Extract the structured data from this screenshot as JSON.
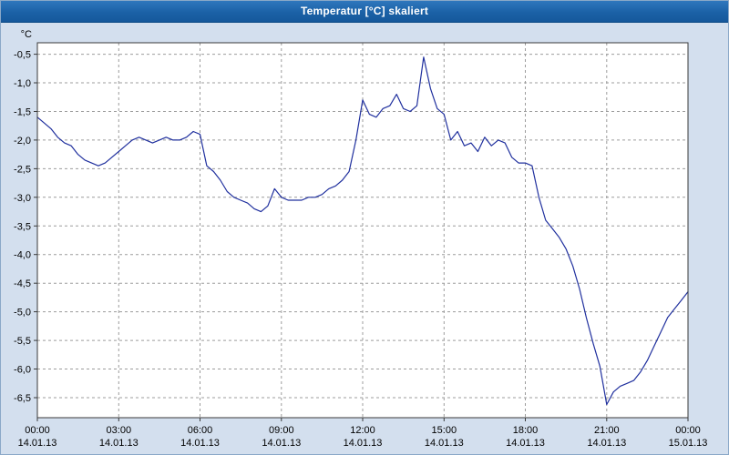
{
  "window": {
    "title": "Temperatur [°C] skaliert"
  },
  "chart_data": {
    "type": "line",
    "title": "Temperatur [°C] skaliert",
    "y_unit_label": "°C",
    "grid": "dashed",
    "legend": "none",
    "xlim_hours": [
      0,
      24
    ],
    "ylim": [
      -6.85,
      -0.3
    ],
    "line_color": "#20309e",
    "grid_color": "#9c9c9c",
    "axis_color": "#3a3a3a",
    "plot_bg": "#ffffff",
    "y_ticks": [
      {
        "v": -0.5,
        "label": "-0,5"
      },
      {
        "v": -1.0,
        "label": "-1,0"
      },
      {
        "v": -1.5,
        "label": "-1,5"
      },
      {
        "v": -2.0,
        "label": "-2,0"
      },
      {
        "v": -2.5,
        "label": "-2,5"
      },
      {
        "v": -3.0,
        "label": "-3,0"
      },
      {
        "v": -3.5,
        "label": "-3,5"
      },
      {
        "v": -4.0,
        "label": "-4,0"
      },
      {
        "v": -4.5,
        "label": "-4,5"
      },
      {
        "v": -5.0,
        "label": "-5,0"
      },
      {
        "v": -5.5,
        "label": "-5,5"
      },
      {
        "v": -6.0,
        "label": "-6,0"
      },
      {
        "v": -6.5,
        "label": "-6,5"
      }
    ],
    "x_ticks": [
      {
        "hour": 0,
        "time": "00:00",
        "date": "14.01.13"
      },
      {
        "hour": 3,
        "time": "03:00",
        "date": "14.01.13"
      },
      {
        "hour": 6,
        "time": "06:00",
        "date": "14.01.13"
      },
      {
        "hour": 9,
        "time": "09:00",
        "date": "14.01.13"
      },
      {
        "hour": 12,
        "time": "12:00",
        "date": "14.01.13"
      },
      {
        "hour": 15,
        "time": "15:00",
        "date": "14.01.13"
      },
      {
        "hour": 18,
        "time": "18:00",
        "date": "14.01.13"
      },
      {
        "hour": 21,
        "time": "21:00",
        "date": "14.01.13"
      },
      {
        "hour": 24,
        "time": "00:00",
        "date": "15.01.13"
      }
    ],
    "series": [
      {
        "name": "Temperatur",
        "x_start_hour": 0,
        "x_step_hours": 0.25,
        "values": [
          -1.6,
          -1.7,
          -1.8,
          -1.95,
          -2.05,
          -2.1,
          -2.25,
          -2.35,
          -2.4,
          -2.45,
          -2.4,
          -2.3,
          -2.2,
          -2.1,
          -2.0,
          -1.95,
          -2.0,
          -2.05,
          -2.0,
          -1.95,
          -2.0,
          -2.0,
          -1.95,
          -1.85,
          -1.9,
          -2.45,
          -2.55,
          -2.7,
          -2.9,
          -3.0,
          -3.05,
          -3.1,
          -3.2,
          -3.25,
          -3.15,
          -2.85,
          -3.0,
          -3.05,
          -3.05,
          -3.05,
          -3.0,
          -3.0,
          -2.95,
          -2.85,
          -2.8,
          -2.7,
          -2.55,
          -2.0,
          -1.3,
          -1.55,
          -1.6,
          -1.45,
          -1.4,
          -1.2,
          -1.45,
          -1.5,
          -1.4,
          -0.55,
          -1.1,
          -1.45,
          -1.55,
          -2.0,
          -1.85,
          -2.1,
          -2.05,
          -2.2,
          -1.95,
          -2.1,
          -2.0,
          -2.05,
          -2.3,
          -2.4,
          -2.4,
          -2.45,
          -3.0,
          -3.4,
          -3.55,
          -3.7,
          -3.9,
          -4.2,
          -4.6,
          -5.1,
          -5.55,
          -5.95,
          -6.62,
          -6.4,
          -6.3,
          -6.25,
          -6.2,
          -6.05,
          -5.85,
          -5.6,
          -5.35,
          -5.1,
          -4.95,
          -4.8,
          -4.65
        ]
      }
    ]
  }
}
